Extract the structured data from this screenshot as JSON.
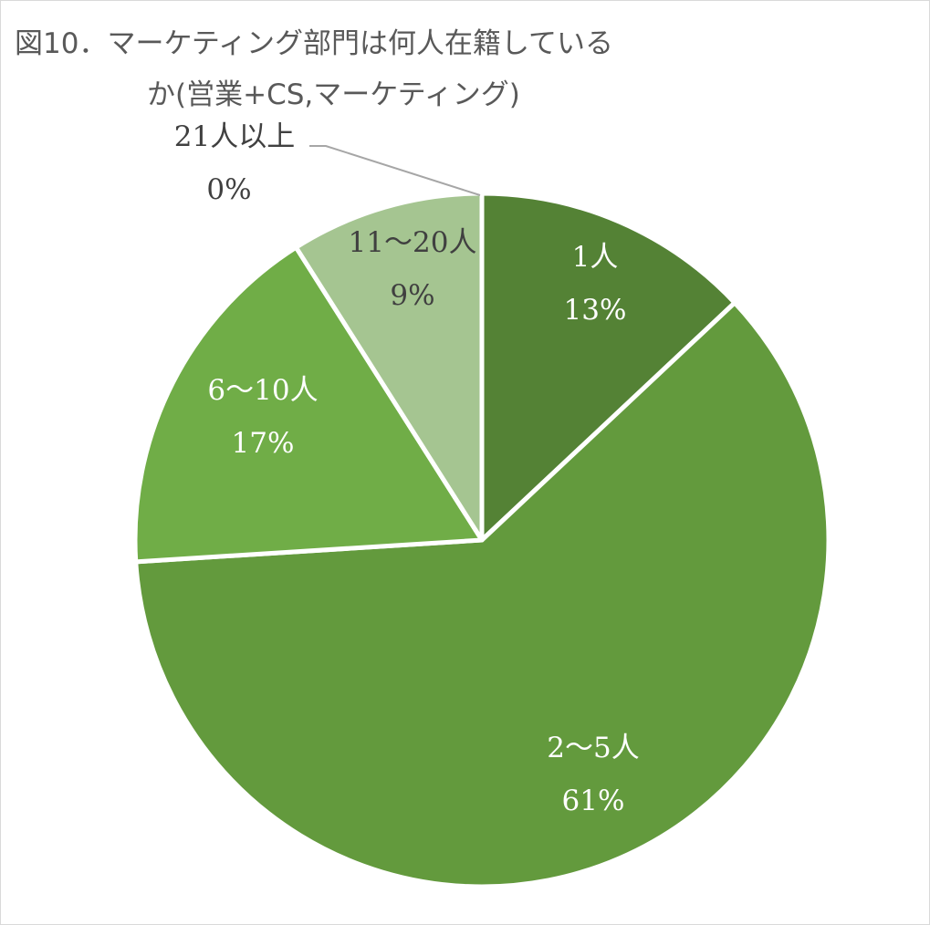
{
  "chart_data": {
    "type": "pie",
    "title_line1": "図10．マーケティング部門は何人在籍している",
    "title_line2": "か(営業+CS,マーケティング)",
    "slices": [
      {
        "label": "1人",
        "pct_label": "13%",
        "value": 13,
        "color": "#548235",
        "label_color": "#ffffff"
      },
      {
        "label": "2～5人",
        "pct_label": "61%",
        "value": 61,
        "color": "#639a3d",
        "label_color": "#ffffff"
      },
      {
        "label": "6～10人",
        "pct_label": "17%",
        "value": 17,
        "color": "#70ad47",
        "label_color": "#ffffff"
      },
      {
        "label": "11～20人",
        "pct_label": "9%",
        "value": 9,
        "color": "#a5c591",
        "label_color": "#404040"
      },
      {
        "label": "21人以上",
        "pct_label": "0%",
        "value": 0,
        "color": "#c5dcb5",
        "label_color": "#404040"
      }
    ]
  }
}
